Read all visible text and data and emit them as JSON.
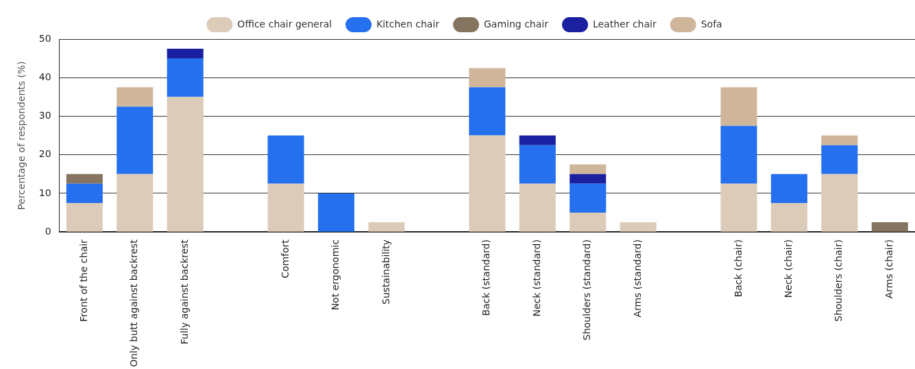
{
  "chart_data": {
    "type": "bar",
    "stacked": true,
    "ylabel": "Percentage of respondents (%)",
    "categories": [
      "Front of the chair",
      "Only butt against backrest",
      "Fully against backrest",
      null,
      "Comfort",
      "Not ergonomic",
      "Sustainability",
      null,
      "Back (standard)",
      "Neck (standard)",
      "Shoulders (standard)",
      "Arms (standard)",
      null,
      "Back (chair)",
      "Neck (chair)",
      "Shoulders (chair)",
      "Arms (chair)"
    ],
    "series": [
      {
        "name": "Office chair general",
        "color": "#dccbb8",
        "values": [
          7.5,
          15,
          35,
          null,
          12.5,
          null,
          2.5,
          null,
          25,
          12.5,
          5,
          2.5,
          null,
          12.5,
          7.5,
          15,
          null
        ]
      },
      {
        "name": "Kitchen chair",
        "color": "#2570ee",
        "values": [
          5,
          17.5,
          10,
          null,
          12.5,
          10,
          null,
          null,
          12.5,
          10,
          7.5,
          null,
          null,
          15,
          7.5,
          7.5,
          null
        ]
      },
      {
        "name": "Gaming chair",
        "color": "#857560",
        "values": [
          2.5,
          null,
          null,
          null,
          null,
          null,
          null,
          null,
          null,
          null,
          null,
          null,
          null,
          null,
          null,
          null,
          2.5
        ]
      },
      {
        "name": "Leather chair",
        "color": "#1a20a0",
        "values": [
          null,
          null,
          2.5,
          null,
          null,
          null,
          null,
          null,
          null,
          2.5,
          2.5,
          null,
          null,
          null,
          null,
          null,
          null
        ]
      },
      {
        "name": "Sofa",
        "color": "#cfb69b",
        "values": [
          null,
          5,
          null,
          null,
          null,
          null,
          null,
          null,
          5,
          null,
          2.5,
          null,
          null,
          10,
          null,
          2.5,
          null
        ]
      }
    ],
    "ylim": [
      0,
      50
    ],
    "yticks": [
      0,
      10,
      20,
      30,
      40,
      50
    ],
    "grid": "y",
    "legend": "top"
  }
}
